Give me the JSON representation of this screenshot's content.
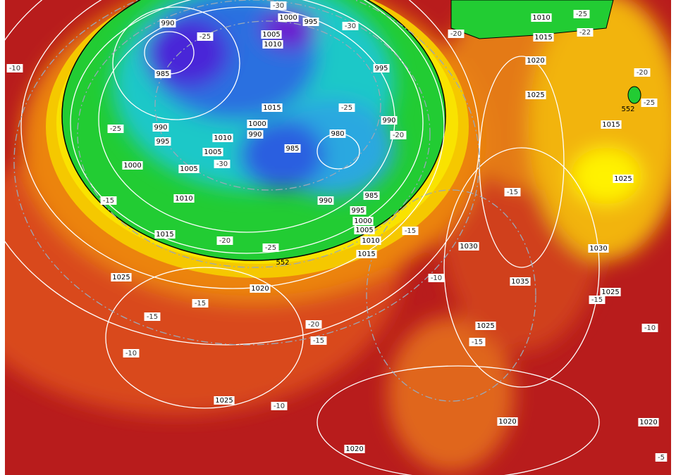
{
  "isobar_labels": [
    990,
    985,
    1000,
    995,
    1005,
    1010,
    995,
    1015,
    1000,
    990,
    990,
    995,
    1010,
    1005,
    1000,
    1005,
    985,
    980,
    990,
    1010,
    990,
    985,
    995,
    1000,
    1005,
    1010,
    1015,
    1015,
    1025,
    1020,
    1025,
    1020,
    1010,
    1015,
    1020,
    1025,
    1015,
    1025,
    1030,
    1030,
    1035,
    1025,
    1025,
    1020,
    1020
  ],
  "temperature_labels": [
    -30,
    -25,
    -30,
    -20,
    -25,
    -22,
    -10,
    -25,
    -30,
    -25,
    -20,
    -20,
    -25,
    -15,
    -20,
    -25,
    -15,
    -15,
    -10,
    -15,
    -15,
    -20,
    -15,
    -10,
    -15,
    -15,
    -10,
    -10,
    -5
  ],
  "thickness_labels": [
    552,
    552
  ]
}
